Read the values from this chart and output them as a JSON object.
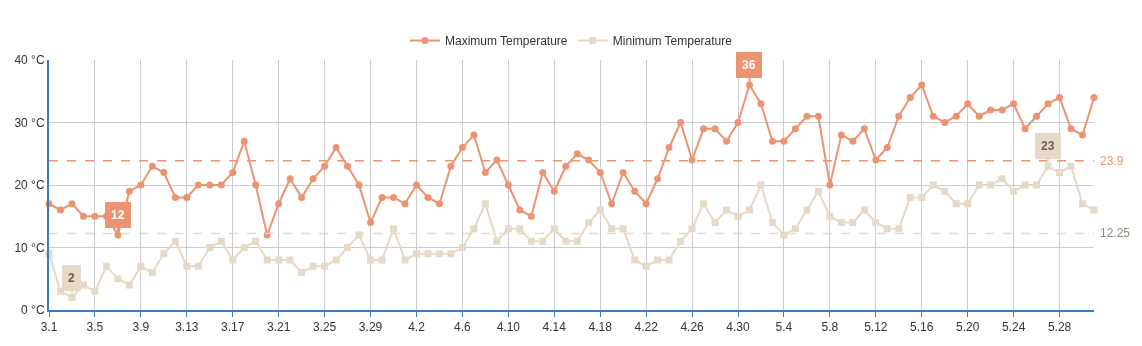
{
  "chart_data": {
    "type": "line",
    "categories": [
      "3.1",
      null,
      null,
      null,
      "3.5",
      null,
      null,
      null,
      "3.9",
      null,
      null,
      null,
      "3.13",
      null,
      null,
      null,
      "3.17",
      null,
      null,
      null,
      "3.21",
      null,
      null,
      null,
      "3.25",
      null,
      null,
      null,
      "3.29",
      null,
      null,
      null,
      "4.2",
      null,
      null,
      null,
      "4.6",
      null,
      null,
      null,
      "4.10",
      null,
      null,
      null,
      "4.14",
      null,
      null,
      null,
      "4.18",
      null,
      null,
      null,
      "4.22",
      null,
      null,
      null,
      "4.26",
      null,
      null,
      null,
      "4.30",
      null,
      null,
      null,
      "5.4",
      null,
      null,
      null,
      "5.8",
      null,
      null,
      null,
      "5.12",
      null,
      null,
      null,
      "5.16",
      null,
      null,
      null,
      "5.20",
      null,
      null,
      null,
      "5.24",
      null,
      null,
      null,
      "5.28",
      null,
      null,
      null
    ],
    "series": [
      {
        "name": "Maximum Temperature",
        "color": "#ec9472",
        "marker": "circle",
        "values": [
          17,
          16,
          17,
          15,
          15,
          15,
          12,
          19,
          20,
          23,
          22,
          18,
          18,
          20,
          20,
          20,
          22,
          27,
          20,
          12,
          17,
          21,
          18,
          21,
          23,
          26,
          23,
          20,
          14,
          18,
          18,
          17,
          20,
          18,
          17,
          23,
          26,
          28,
          22,
          24,
          20,
          16,
          15,
          22,
          19,
          23,
          25,
          24,
          22,
          17,
          22,
          19,
          17,
          21,
          26,
          30,
          24,
          29,
          29,
          27,
          30,
          36,
          33,
          27,
          27,
          29,
          31,
          31,
          20,
          28,
          27,
          29,
          24,
          26,
          31,
          34,
          36,
          31,
          30,
          31,
          33,
          31,
          32,
          32,
          33,
          29,
          31,
          33,
          34,
          29,
          28,
          34
        ]
      },
      {
        "name": "Minimum Temperature",
        "color": "#e6d9c7",
        "marker": "square",
        "values": [
          9,
          3,
          2,
          4,
          3,
          7,
          5,
          4,
          7,
          6,
          9,
          11,
          7,
          7,
          10,
          11,
          8,
          10,
          11,
          8,
          8,
          8,
          6,
          7,
          7,
          8,
          10,
          12,
          8,
          8,
          13,
          8,
          9,
          9,
          9,
          9,
          10,
          13,
          17,
          11,
          13,
          13,
          11,
          11,
          13,
          11,
          11,
          14,
          16,
          13,
          13,
          8,
          7,
          8,
          8,
          11,
          13,
          17,
          14,
          16,
          15,
          16,
          20,
          14,
          12,
          13,
          16,
          19,
          15,
          14,
          14,
          16,
          14,
          13,
          13,
          18,
          18,
          20,
          19,
          17,
          17,
          20,
          20,
          21,
          19,
          20,
          20,
          23,
          22,
          23,
          17,
          16
        ]
      }
    ],
    "ylim": [
      0,
      40
    ],
    "yticks": [
      {
        "value": 0,
        "label": "0 °C"
      },
      {
        "value": 10,
        "label": "10 °C"
      },
      {
        "value": 20,
        "label": "20 °C"
      },
      {
        "value": 30,
        "label": "30 °C"
      },
      {
        "value": 40,
        "label": "40 °C"
      }
    ],
    "ref_lines": [
      {
        "axis": "y",
        "value": 23.9,
        "label": "23.9",
        "color": "#ec9472",
        "line_style": "dashed"
      },
      {
        "axis": "y",
        "value": 12.25,
        "label": "12.25",
        "color": "#e6d9c7",
        "line_style": "dashed"
      }
    ],
    "annotations": [
      {
        "text": "12",
        "y": 12
      },
      {
        "text": "36",
        "y": 36
      },
      {
        "text": "2",
        "y": 2
      },
      {
        "text": "23",
        "y": 23
      }
    ],
    "grid": true,
    "legend": "top",
    "line_style": "solid"
  }
}
